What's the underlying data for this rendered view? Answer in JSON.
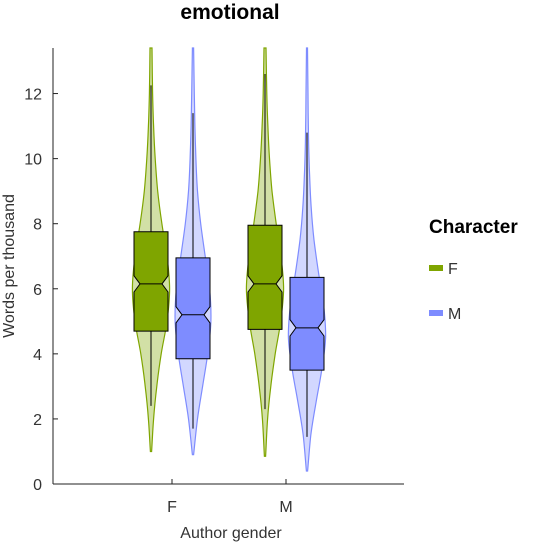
{
  "chart_data": {
    "type": "violin",
    "title": "emotional",
    "xlabel": "Author gender",
    "ylabel": "Words per thousand",
    "categories": [
      "F",
      "M"
    ],
    "ylim": [
      0,
      13.4
    ],
    "yticks": [
      0,
      2,
      4,
      6,
      8,
      10,
      12
    ],
    "grid": false,
    "legend": {
      "title": "Character",
      "placement": "right"
    },
    "series": [
      {
        "name": "F",
        "color": "#7fa500",
        "stats": [
          {
            "category": "F",
            "min": 1.0,
            "whisker_low": 2.4,
            "q1": 4.7,
            "median": 6.15,
            "q3": 7.75,
            "whisker_high": 12.25,
            "max": 13.4,
            "notch_low": 5.9,
            "notch_high": 6.4,
            "density": [
              [
                1.0,
                0.1
              ],
              [
                2,
                0.4
              ],
              [
                3,
                0.9
              ],
              [
                4,
                1.6
              ],
              [
                5,
                2.5
              ],
              [
                6,
                2.9
              ],
              [
                7,
                2.5
              ],
              [
                8,
                1.7
              ],
              [
                9,
                1.05
              ],
              [
                10,
                0.65
              ],
              [
                11,
                0.4
              ],
              [
                12,
                0.25
              ],
              [
                13.4,
                0.15
              ]
            ]
          },
          {
            "category": "M",
            "min": 0.85,
            "whisker_low": 2.3,
            "q1": 4.75,
            "median": 6.15,
            "q3": 7.95,
            "whisker_high": 12.6,
            "max": 13.4,
            "notch_low": 5.9,
            "notch_high": 6.4,
            "density": [
              [
                0.85,
                0.1
              ],
              [
                2,
                0.4
              ],
              [
                3,
                0.9
              ],
              [
                4,
                1.6
              ],
              [
                5,
                2.45
              ],
              [
                6,
                2.9
              ],
              [
                7,
                2.5
              ],
              [
                8,
                1.75
              ],
              [
                9,
                1.1
              ],
              [
                10,
                0.7
              ],
              [
                11,
                0.45
              ],
              [
                12,
                0.28
              ],
              [
                13.4,
                0.15
              ]
            ]
          }
        ]
      },
      {
        "name": "M",
        "color": "#7e8cff",
        "stats": [
          {
            "category": "F",
            "min": 0.9,
            "whisker_low": 1.7,
            "q1": 3.85,
            "median": 5.2,
            "q3": 6.95,
            "whisker_high": 11.4,
            "max": 13.4,
            "notch_low": 4.95,
            "notch_high": 5.45,
            "density": [
              [
                0.9,
                0.1
              ],
              [
                2,
                0.7
              ],
              [
                3,
                1.5
              ],
              [
                4,
                2.3
              ],
              [
                5,
                2.8
              ],
              [
                6,
                2.6
              ],
              [
                7,
                1.9
              ],
              [
                8,
                1.2
              ],
              [
                9,
                0.7
              ],
              [
                10,
                0.45
              ],
              [
                11,
                0.3
              ],
              [
                12,
                0.2
              ],
              [
                13.4,
                0.1
              ]
            ]
          },
          {
            "category": "M",
            "min": 0.4,
            "whisker_low": 1.45,
            "q1": 3.5,
            "median": 4.8,
            "q3": 6.35,
            "whisker_high": 10.8,
            "max": 13.4,
            "notch_low": 4.55,
            "notch_high": 5.05,
            "density": [
              [
                0.4,
                0.1
              ],
              [
                1.5,
                0.6
              ],
              [
                2.5,
                1.4
              ],
              [
                3.5,
                2.3
              ],
              [
                4.5,
                2.9
              ],
              [
                5.5,
                2.6
              ],
              [
                6.5,
                1.8
              ],
              [
                7.5,
                1.1
              ],
              [
                8.5,
                0.65
              ],
              [
                9.5,
                0.4
              ],
              [
                10.5,
                0.25
              ],
              [
                12,
                0.15
              ],
              [
                13.4,
                0.08
              ]
            ]
          }
        ]
      }
    ]
  }
}
